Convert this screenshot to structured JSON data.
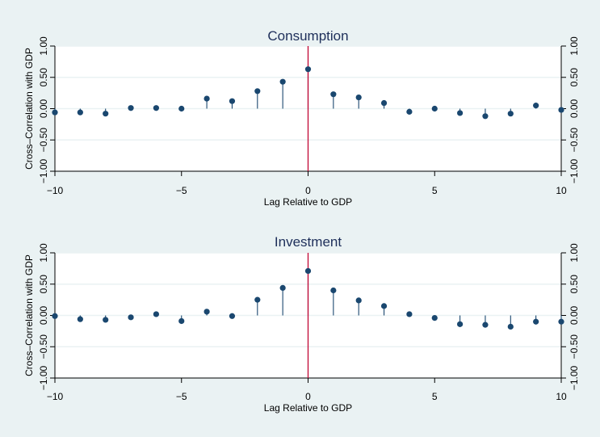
{
  "colors": {
    "outer_background": "#eaf2f3",
    "plot_background": "#ffffff",
    "gridline": "#eaf2f3",
    "axis": "#000000",
    "marker": "#1a476f",
    "stem": "#1a476f",
    "reference_line": "#c10534",
    "title_text": "#1e2f5a"
  },
  "chart_data": [
    {
      "type": "scatter",
      "style": "stem with dot markers",
      "title": "Consumption",
      "xlabel": "Lag Relative to GDP",
      "ylabel": "Cross–Correlation with GDP",
      "xlim": [
        -10,
        10
      ],
      "ylim": [
        -1,
        1
      ],
      "x_ticks": [
        -10,
        -5,
        0,
        5,
        10
      ],
      "x_tick_labels": [
        "−10",
        "−5",
        "0",
        "5",
        "10"
      ],
      "y_ticks": [
        -1,
        -0.5,
        0,
        0.5,
        1
      ],
      "y_tick_labels": [
        "−1.00",
        "−0.50",
        "0.00",
        "0.50",
        "1.00"
      ],
      "mirror_y_axis_right": true,
      "grid": "horizontal",
      "reference_line_x": 0,
      "x": [
        -10,
        -9,
        -8,
        -7,
        -6,
        -5,
        -4,
        -3,
        -2,
        -1,
        0,
        1,
        2,
        3,
        4,
        5,
        6,
        7,
        8,
        9,
        10
      ],
      "y": [
        -0.06,
        -0.06,
        -0.08,
        0.01,
        0.01,
        0.0,
        0.16,
        0.12,
        0.28,
        0.43,
        0.63,
        0.23,
        0.18,
        0.09,
        -0.05,
        0.0,
        -0.07,
        -0.12,
        -0.08,
        0.05,
        -0.02
      ]
    },
    {
      "type": "scatter",
      "style": "stem with dot markers",
      "title": "Investment",
      "xlabel": "Lag Relative to GDP",
      "ylabel": "Cross–Correlation with GDP",
      "xlim": [
        -10,
        10
      ],
      "ylim": [
        -1,
        1
      ],
      "x_ticks": [
        -10,
        -5,
        0,
        5,
        10
      ],
      "x_tick_labels": [
        "−10",
        "−5",
        "0",
        "5",
        "10"
      ],
      "y_ticks": [
        -1,
        -0.5,
        0,
        0.5,
        1
      ],
      "y_tick_labels": [
        "−1.00",
        "−0.50",
        "0.00",
        "0.50",
        "1.00"
      ],
      "mirror_y_axis_right": true,
      "grid": "horizontal",
      "reference_line_x": 0,
      "x": [
        -10,
        -9,
        -8,
        -7,
        -6,
        -5,
        -4,
        -3,
        -2,
        -1,
        0,
        1,
        2,
        3,
        4,
        5,
        6,
        7,
        8,
        9,
        10
      ],
      "y": [
        -0.01,
        -0.06,
        -0.07,
        -0.03,
        0.02,
        -0.09,
        0.06,
        -0.01,
        0.25,
        0.44,
        0.71,
        0.4,
        0.24,
        0.15,
        0.02,
        -0.04,
        -0.14,
        -0.15,
        -0.18,
        -0.1,
        -0.1
      ]
    }
  ]
}
